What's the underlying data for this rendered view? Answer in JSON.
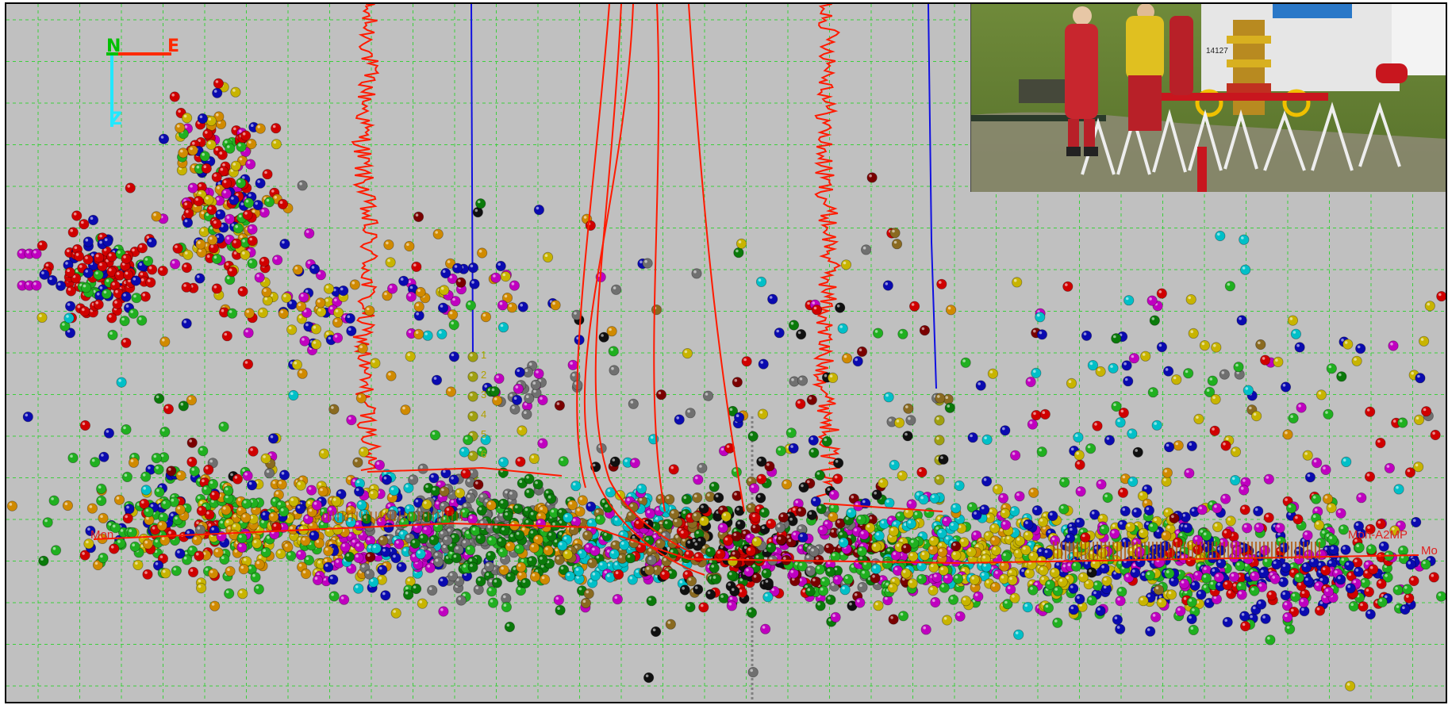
{
  "compass": {
    "north_label": "N",
    "east_label": "E",
    "down_label": "Z",
    "north_color": "#00c000",
    "east_color": "#ff2a00",
    "down_color": "#22e8ff"
  },
  "wells": {
    "left_label": "Mon...",
    "right_label": "Mon-A2MP",
    "far_right_label": "Mo",
    "stage_labels": [
      "1",
      "2",
      "3",
      "4",
      "5",
      "6"
    ]
  },
  "colors": {
    "background": "#c0c0c0",
    "grid": "#3ccf3c",
    "well_red": "#ff1a00",
    "well_blue": "#1010e0",
    "event_palette": [
      "#d00000",
      "#20b020",
      "#0a0ab0",
      "#c8b400",
      "#d08a00",
      "#00c0c8",
      "#c000c0",
      "#707070",
      "#0a7a0a",
      "#8a6a20",
      "#7a0000",
      "#101010",
      "#a0a010"
    ]
  },
  "inset_photo": {
    "description_icon": "wellhead-photo",
    "truck_number": "14127"
  }
}
